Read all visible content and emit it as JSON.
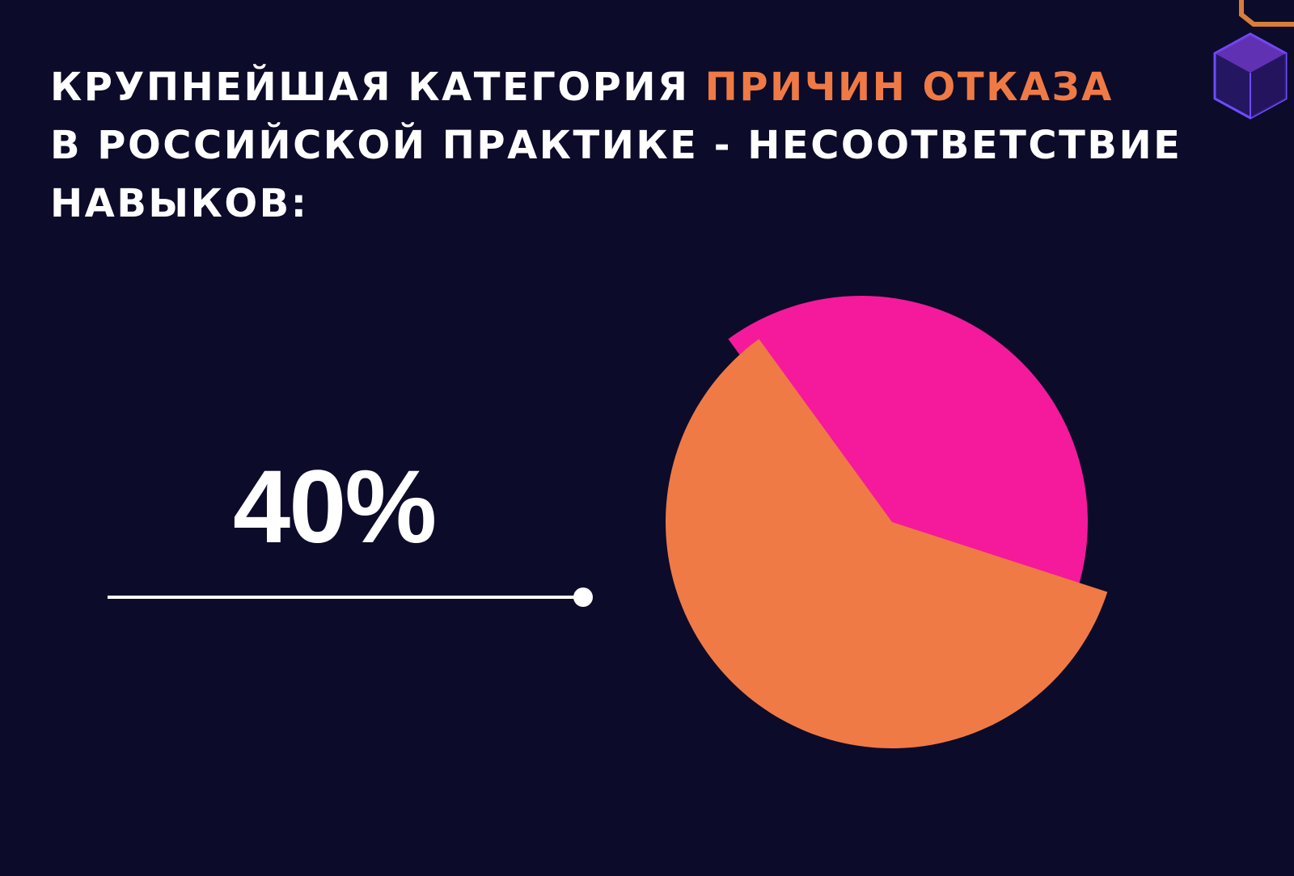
{
  "title": {
    "line1_before": "КРУПНЕЙШАЯ КАТЕГОРИЯ ",
    "line1_accent": "ПРИЧИН ОТКАЗА",
    "line2": "В РОССИЙСКОЙ ПРАКТИКЕ - НЕСООТВЕТСТВИЕ",
    "line3": "НАВЫКОВ:"
  },
  "highlight_value": "40%",
  "colors": {
    "background": "#0c0b2a",
    "accent": "#ef7a45",
    "highlight_slice": "#f41a9b",
    "other_slice": "#ef7a45",
    "text": "#ffffff"
  },
  "decoration": {
    "icon": "hexagon-cube-icon"
  },
  "chart_data": {
    "type": "pie",
    "values": [
      40,
      60
    ],
    "colors": [
      "#f41a9b",
      "#ef7a45"
    ],
    "value_labels": [
      "40%",
      ""
    ]
  }
}
